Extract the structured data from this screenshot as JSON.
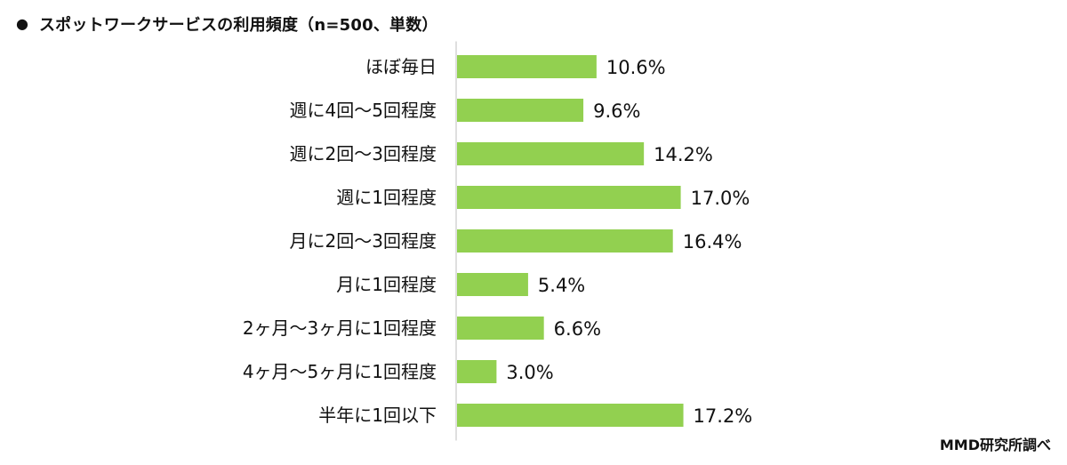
{
  "header": {
    "bullet": "●",
    "title": "スポットワークサービスの利用頻度（n=500、単数）"
  },
  "source": "MMD研究所調べ",
  "chart_data": {
    "type": "bar",
    "orientation": "horizontal",
    "categories": [
      "ほぼ毎日",
      "週に4回～5回程度",
      "週に2回～3回程度",
      "週に1回程度",
      "月に2回～3回程度",
      "月に1回程度",
      "2ヶ月～3ヶ月に1回程度",
      "4ヶ月～5ヶ月に1回程度",
      "半年に1回以下"
    ],
    "values": [
      10.6,
      9.6,
      14.2,
      17.0,
      16.4,
      5.4,
      6.6,
      3.0,
      17.2
    ],
    "value_labels": [
      "10.6%",
      "9.6%",
      "14.2%",
      "17.0%",
      "16.4%",
      "5.4%",
      "6.6%",
      "3.0%",
      "17.2%"
    ],
    "unit": "%",
    "title": "スポットワークサービスの利用頻度（n=500、単数）",
    "xlim": [
      0,
      20
    ],
    "grid": false,
    "legend": "none",
    "bar_color": "#92d050",
    "axis_color": "#bfbfbf"
  }
}
